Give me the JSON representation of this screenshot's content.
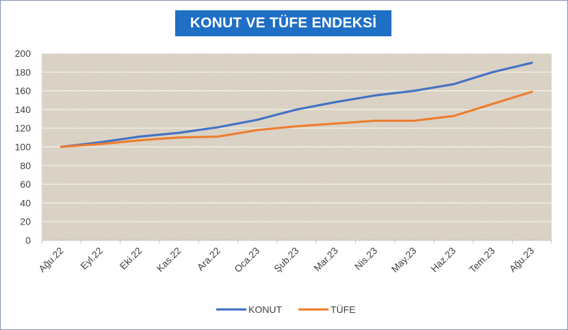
{
  "chart_data": {
    "type": "line",
    "title": "KONUT VE TÜFE ENDEKSİ",
    "categories": [
      "Ağu.22",
      "Eyl.22",
      "Eki.22",
      "Kas.22",
      "Ara.22",
      "Oca.23",
      "Şub.23",
      "Mar.23",
      "Nis.23",
      "May.23",
      "Haz.23",
      "Tem.23",
      "Ağu.23"
    ],
    "series": [
      {
        "name": "KONUT",
        "color": "#4472c4",
        "values": [
          100,
          105,
          111,
          115,
          121,
          129,
          140,
          148,
          155,
          160,
          167,
          180,
          190
        ]
      },
      {
        "name": "TÜFE",
        "color": "#ed7d31",
        "values": [
          100,
          103,
          107,
          110,
          111,
          118,
          122,
          125,
          128,
          128,
          133,
          146,
          159
        ]
      }
    ],
    "ylim": [
      0,
      200
    ],
    "yticks": [
      0,
      20,
      40,
      60,
      80,
      100,
      120,
      140,
      160,
      180,
      200
    ],
    "grid": true,
    "legend": "bottom"
  }
}
